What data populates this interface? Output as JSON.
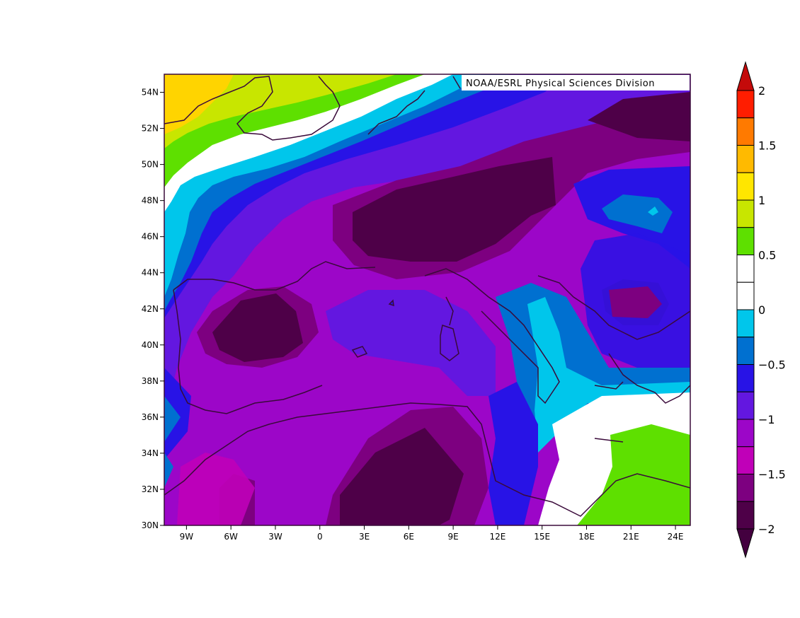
{
  "credit": "NOAA/ESRL Physical Sciences Division",
  "map": {
    "lon_range": [
      -10.5,
      25
    ],
    "lat_range": [
      30,
      55
    ],
    "x_ticks": [
      "9W",
      "6W",
      "3W",
      "0",
      "3E",
      "6E",
      "9E",
      "12E",
      "15E",
      "18E",
      "21E",
      "24E"
    ],
    "y_ticks": [
      "30N",
      "32N",
      "34N",
      "36N",
      "38N",
      "40N",
      "42N",
      "44N",
      "46N",
      "48N",
      "50N",
      "52N",
      "54N"
    ],
    "coastline_color": "#3a0a3a"
  },
  "colorbar": {
    "labels": [
      "2",
      "1.5",
      "1",
      "0.5",
      "0",
      "−0.5",
      "−1",
      "−1.5",
      "−2"
    ],
    "colors_top_to_bottom": [
      "#ff1d00",
      "#ff7a00",
      "#ffba00",
      "#ffe600",
      "#c8e600",
      "#5ee000",
      "#ffffff",
      "#ffffff",
      "#00c6eb",
      "#0070d0",
      "#2813e6",
      "#6317e0",
      "#9c06c8",
      "#c000b8",
      "#7d0080",
      "#4e0048"
    ],
    "max_arrow_color": "#c40a0a",
    "min_arrow_color": "#43003f"
  }
}
